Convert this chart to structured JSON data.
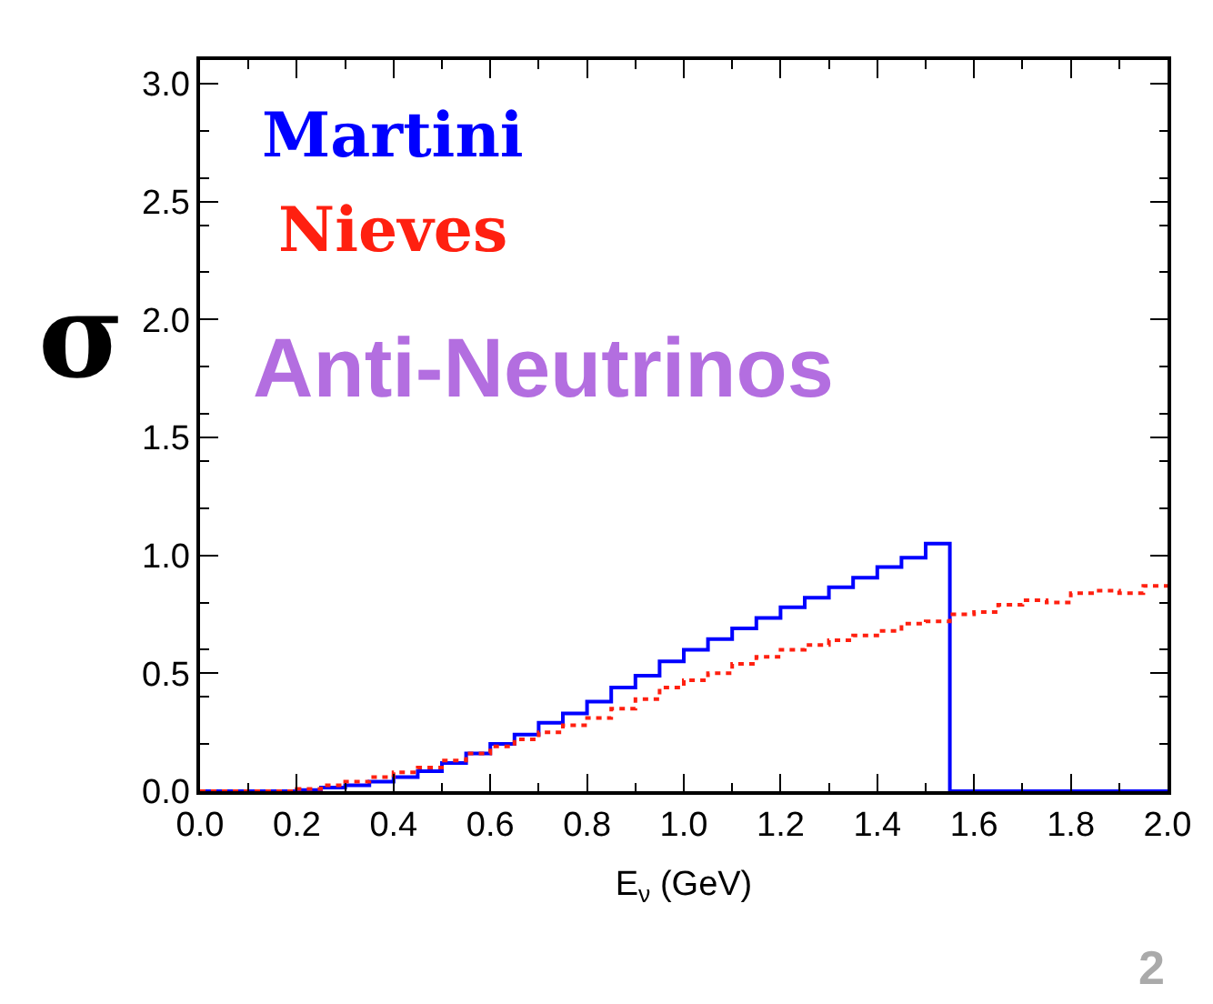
{
  "chart_data": {
    "type": "step",
    "xlabel": "E$_{ν}$ (GeV)",
    "ylabel": "σ",
    "xlim": [
      0,
      2.0
    ],
    "ylim": [
      0,
      3.1
    ],
    "xticks": [
      {
        "value": 0,
        "label": "0.0"
      },
      0.2,
      0.4,
      0.6,
      0.8,
      {
        "value": 1.0,
        "label": "1.0"
      },
      1.2,
      1.4,
      1.6,
      1.8,
      {
        "value": 2.0,
        "label": "2.0"
      }
    ],
    "yticks": [
      {
        "value": 0,
        "label": "0.0"
      },
      0.5,
      {
        "value": 1.0,
        "label": "1.0"
      },
      1.5,
      {
        "value": 2.0,
        "label": "2.0"
      },
      2.5,
      {
        "value": 3.0,
        "label": "3.0"
      }
    ],
    "grid": false,
    "legend": false,
    "annotations": [
      "Anti-Neutrinos",
      "2"
    ],
    "series": [
      {
        "name": "Martini",
        "color": "#0000ff",
        "line_style": "solid",
        "x": [
          0,
          0.05,
          0.1,
          0.15,
          0.2,
          0.25,
          0.3,
          0.35,
          0.4,
          0.45,
          0.5,
          0.55,
          0.6,
          0.65,
          0.7,
          0.75,
          0.8,
          0.85,
          0.9,
          0.95,
          1.0,
          1.05,
          1.1,
          1.15,
          1.2,
          1.25,
          1.3,
          1.35,
          1.4,
          1.45,
          1.5,
          1.55,
          2.0
        ],
        "values": [
          0,
          0,
          0,
          0,
          0.005,
          0.015,
          0.025,
          0.04,
          0.06,
          0.085,
          0.12,
          0.16,
          0.2,
          0.24,
          0.29,
          0.33,
          0.38,
          0.44,
          0.49,
          0.55,
          0.6,
          0.645,
          0.69,
          0.735,
          0.78,
          0.82,
          0.865,
          0.905,
          0.95,
          0.99,
          1.05,
          0,
          0
        ]
      },
      {
        "name": "Nieves",
        "color": "#ff2010",
        "line_style": "dotted",
        "x": [
          0,
          0.05,
          0.1,
          0.15,
          0.2,
          0.25,
          0.3,
          0.35,
          0.4,
          0.45,
          0.5,
          0.55,
          0.6,
          0.65,
          0.7,
          0.75,
          0.8,
          0.85,
          0.9,
          0.95,
          1.0,
          1.05,
          1.1,
          1.15,
          1.2,
          1.25,
          1.3,
          1.35,
          1.4,
          1.45,
          1.5,
          1.55,
          1.6,
          1.65,
          1.7,
          1.75,
          1.8,
          1.85,
          1.9,
          1.95,
          2.0
        ],
        "values": [
          0,
          0,
          0,
          0,
          0.01,
          0.025,
          0.04,
          0.06,
          0.08,
          0.1,
          0.13,
          0.16,
          0.19,
          0.22,
          0.25,
          0.28,
          0.31,
          0.35,
          0.39,
          0.44,
          0.47,
          0.5,
          0.54,
          0.57,
          0.6,
          0.62,
          0.64,
          0.66,
          0.68,
          0.71,
          0.72,
          0.75,
          0.76,
          0.79,
          0.81,
          0.8,
          0.84,
          0.85,
          0.84,
          0.87,
          0.9
        ]
      }
    ]
  }
}
